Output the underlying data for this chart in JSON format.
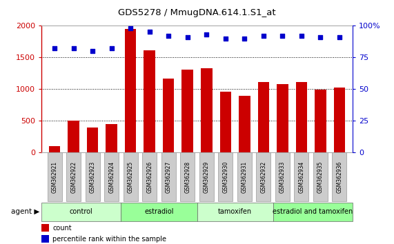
{
  "title": "GDS5278 / MmugDNA.614.1.S1_at",
  "samples": [
    "GSM362921",
    "GSM362922",
    "GSM362923",
    "GSM362924",
    "GSM362925",
    "GSM362926",
    "GSM362927",
    "GSM362928",
    "GSM362929",
    "GSM362930",
    "GSM362931",
    "GSM362932",
    "GSM362933",
    "GSM362934",
    "GSM362935",
    "GSM362936"
  ],
  "counts": [
    100,
    505,
    390,
    450,
    1950,
    1610,
    1160,
    1310,
    1330,
    960,
    890,
    1110,
    1080,
    1110,
    990,
    1020
  ],
  "percentiles": [
    82,
    82,
    80,
    82,
    98,
    95,
    92,
    91,
    93,
    90,
    90,
    92,
    92,
    92,
    91,
    91
  ],
  "bar_color": "#cc0000",
  "dot_color": "#0000cc",
  "ylim_left": [
    0,
    2000
  ],
  "ylim_right": [
    0,
    100
  ],
  "yticks_left": [
    0,
    500,
    1000,
    1500,
    2000
  ],
  "yticks_right": [
    0,
    25,
    50,
    75,
    100
  ],
  "groups": [
    {
      "label": "control",
      "start": 0,
      "end": 4,
      "color": "#ccffcc"
    },
    {
      "label": "estradiol",
      "start": 4,
      "end": 8,
      "color": "#99ff99"
    },
    {
      "label": "tamoxifen",
      "start": 8,
      "end": 12,
      "color": "#ccffcc"
    },
    {
      "label": "estradiol and tamoxifen",
      "start": 12,
      "end": 16,
      "color": "#99ff99"
    }
  ],
  "agent_label": "agent",
  "legend_count_label": "count",
  "legend_percentile_label": "percentile rank within the sample",
  "bar_color_hex": "#cc0000",
  "dot_color_hex": "#0000cc",
  "tick_label_color_left": "#cc0000",
  "tick_label_color_right": "#0000cc",
  "bar_width": 0.6,
  "grid_linestyle": ":",
  "grid_linewidth": 0.7,
  "sample_box_color": "#cccccc",
  "sample_box_edge": "#999999"
}
